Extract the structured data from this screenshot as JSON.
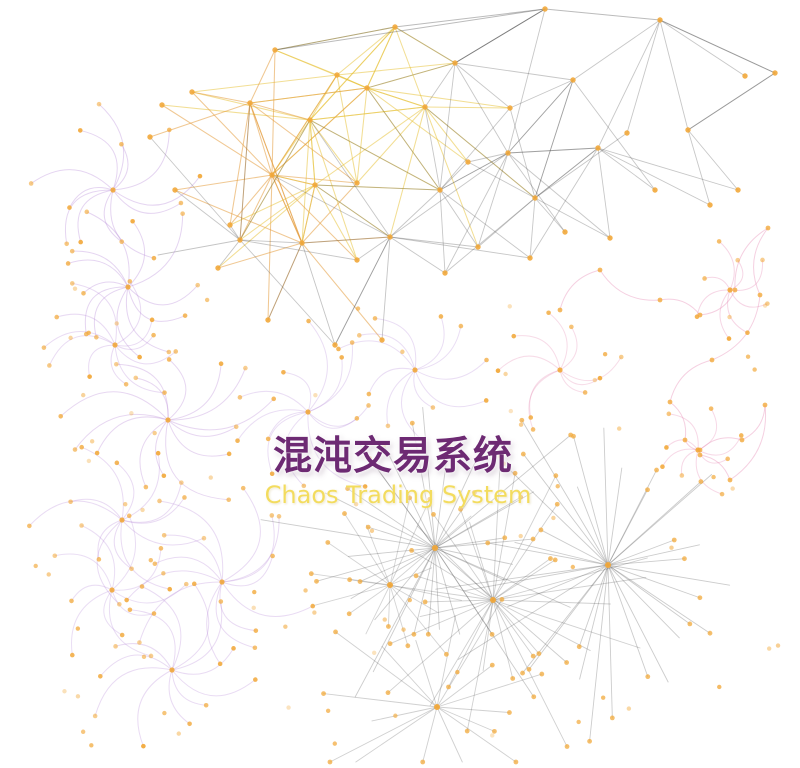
{
  "title": {
    "chinese": "混沌交易系统",
    "english": "Chaos Trading System"
  },
  "colors": {
    "title_chinese": "#6d2a73",
    "title_english": "#f3dc5e",
    "node": "#f2a93b",
    "edge_gray": "#555555",
    "edge_gold": "#e8c23c",
    "edge_orange": "#e49a3a",
    "edge_purple": "#b587d6",
    "edge_pink": "#e58ab4"
  },
  "icons": [
    "network-graph-illustration"
  ]
}
